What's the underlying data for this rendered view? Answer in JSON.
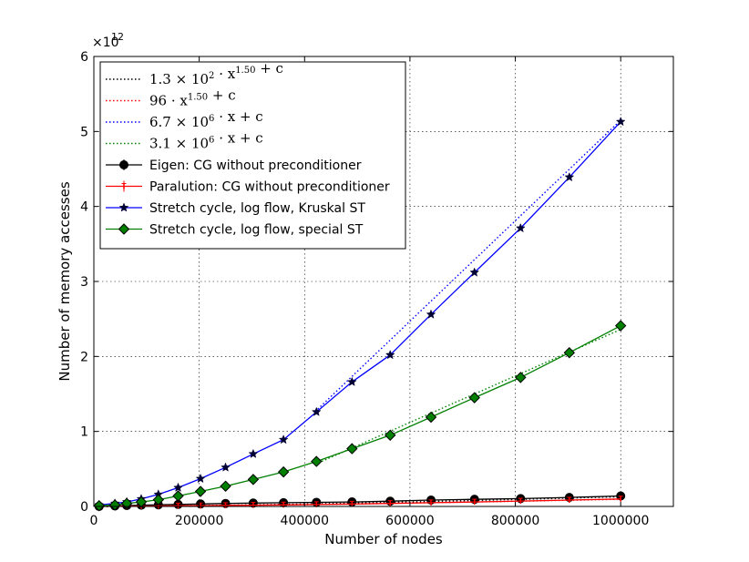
{
  "chart_data": {
    "type": "line",
    "xlabel": "Number of nodes",
    "ylabel": "Number of memory accesses",
    "xlim": [
      0,
      1100000
    ],
    "ylim": [
      0,
      6
    ],
    "y_multiplier": "×10",
    "y_multiplier_exp": "12",
    "x_ticks": [
      0,
      200000,
      400000,
      600000,
      800000,
      1000000
    ],
    "x_tick_labels": [
      "0",
      "200000",
      "400000",
      "600000",
      "800000",
      "1000000"
    ],
    "y_ticks": [
      0,
      1,
      2,
      3,
      4,
      5,
      6
    ],
    "y_tick_labels": [
      "0",
      "1",
      "2",
      "3",
      "4",
      "5",
      "6"
    ],
    "grid": true,
    "legend_position": "top-left",
    "fits": [
      {
        "label_base": "1.3 × 10",
        "label_sup1": "2",
        "label_mid": " · x",
        "label_sup2": "1.50",
        "label_end": " + c",
        "color": "#000000",
        "model": "pow",
        "a": 130.0,
        "p": 1.5,
        "c": 0
      },
      {
        "label_base": "96 · x",
        "label_sup1": "1.50",
        "label_mid": " + c",
        "label_sup2": "",
        "label_end": "",
        "color": "#ff0000",
        "model": "pow",
        "a": 96,
        "p": 1.5,
        "c": 0
      },
      {
        "label_base": "6.7 × 10",
        "label_sup1": "6",
        "label_mid": " · x + c",
        "label_sup2": "",
        "label_end": "",
        "color": "#0000ff",
        "model": "lin",
        "a": 6700000.0,
        "c": -1550000000000.0
      },
      {
        "label_base": "3.1 × 10",
        "label_sup1": "6",
        "label_mid": " · x + c",
        "label_sup2": "",
        "label_end": "",
        "color": "#008000",
        "model": "lin",
        "a": 3100000.0,
        "c": -740000000000.0
      }
    ],
    "series": [
      {
        "name": "Eigen: CG without preconditioner",
        "color": "#000000",
        "marker": "circle",
        "x": [
          10000,
          40000,
          62500,
          90000,
          122500,
          160000,
          202500,
          250000,
          302500,
          360000,
          422500,
          490000,
          562500,
          640000,
          722500,
          810000,
          902500,
          1000000
        ],
        "y": [
          0.001,
          0.007,
          0.012,
          0.017,
          0.022,
          0.027,
          0.033,
          0.04,
          0.045,
          0.05,
          0.055,
          0.06,
          0.07,
          0.085,
          0.095,
          0.105,
          0.12,
          0.14
        ]
      },
      {
        "name": "Paralution: CG without preconditioner",
        "color": "#ff0000",
        "marker": "errbar",
        "x": [
          10000,
          40000,
          62500,
          90000,
          122500,
          160000,
          202500,
          250000,
          302500,
          360000,
          422500,
          490000,
          562500,
          640000,
          722500,
          810000,
          902500,
          1000000
        ],
        "y": [
          0.001,
          0.002,
          0.003,
          0.005,
          0.006,
          0.008,
          0.01,
          0.013,
          0.017,
          0.021,
          0.026,
          0.032,
          0.04,
          0.05,
          0.06,
          0.072,
          0.085,
          0.1
        ]
      },
      {
        "name": "Stretch cycle, log flow, Kruskal ST",
        "color": "#0000ff",
        "marker": "star",
        "x": [
          10000,
          40000,
          62500,
          90000,
          122500,
          160000,
          202500,
          250000,
          302500,
          360000,
          422500,
          490000,
          562500,
          640000,
          722500,
          810000,
          902500,
          1000000
        ],
        "y": [
          0.02,
          0.04,
          0.06,
          0.1,
          0.16,
          0.25,
          0.37,
          0.52,
          0.7,
          0.89,
          1.26,
          1.66,
          2.02,
          2.56,
          3.12,
          3.71,
          4.39,
          5.13
        ]
      },
      {
        "name": "Stretch cycle, log flow, special ST",
        "color": "#008000",
        "marker": "diamond",
        "x": [
          10000,
          40000,
          62500,
          90000,
          122500,
          160000,
          202500,
          250000,
          302500,
          360000,
          422500,
          490000,
          562500,
          640000,
          722500,
          810000,
          902500,
          1000000
        ],
        "y": [
          0.01,
          0.02,
          0.04,
          0.06,
          0.09,
          0.14,
          0.2,
          0.27,
          0.36,
          0.46,
          0.6,
          0.77,
          0.95,
          1.19,
          1.45,
          1.72,
          2.05,
          2.41
        ]
      }
    ]
  }
}
